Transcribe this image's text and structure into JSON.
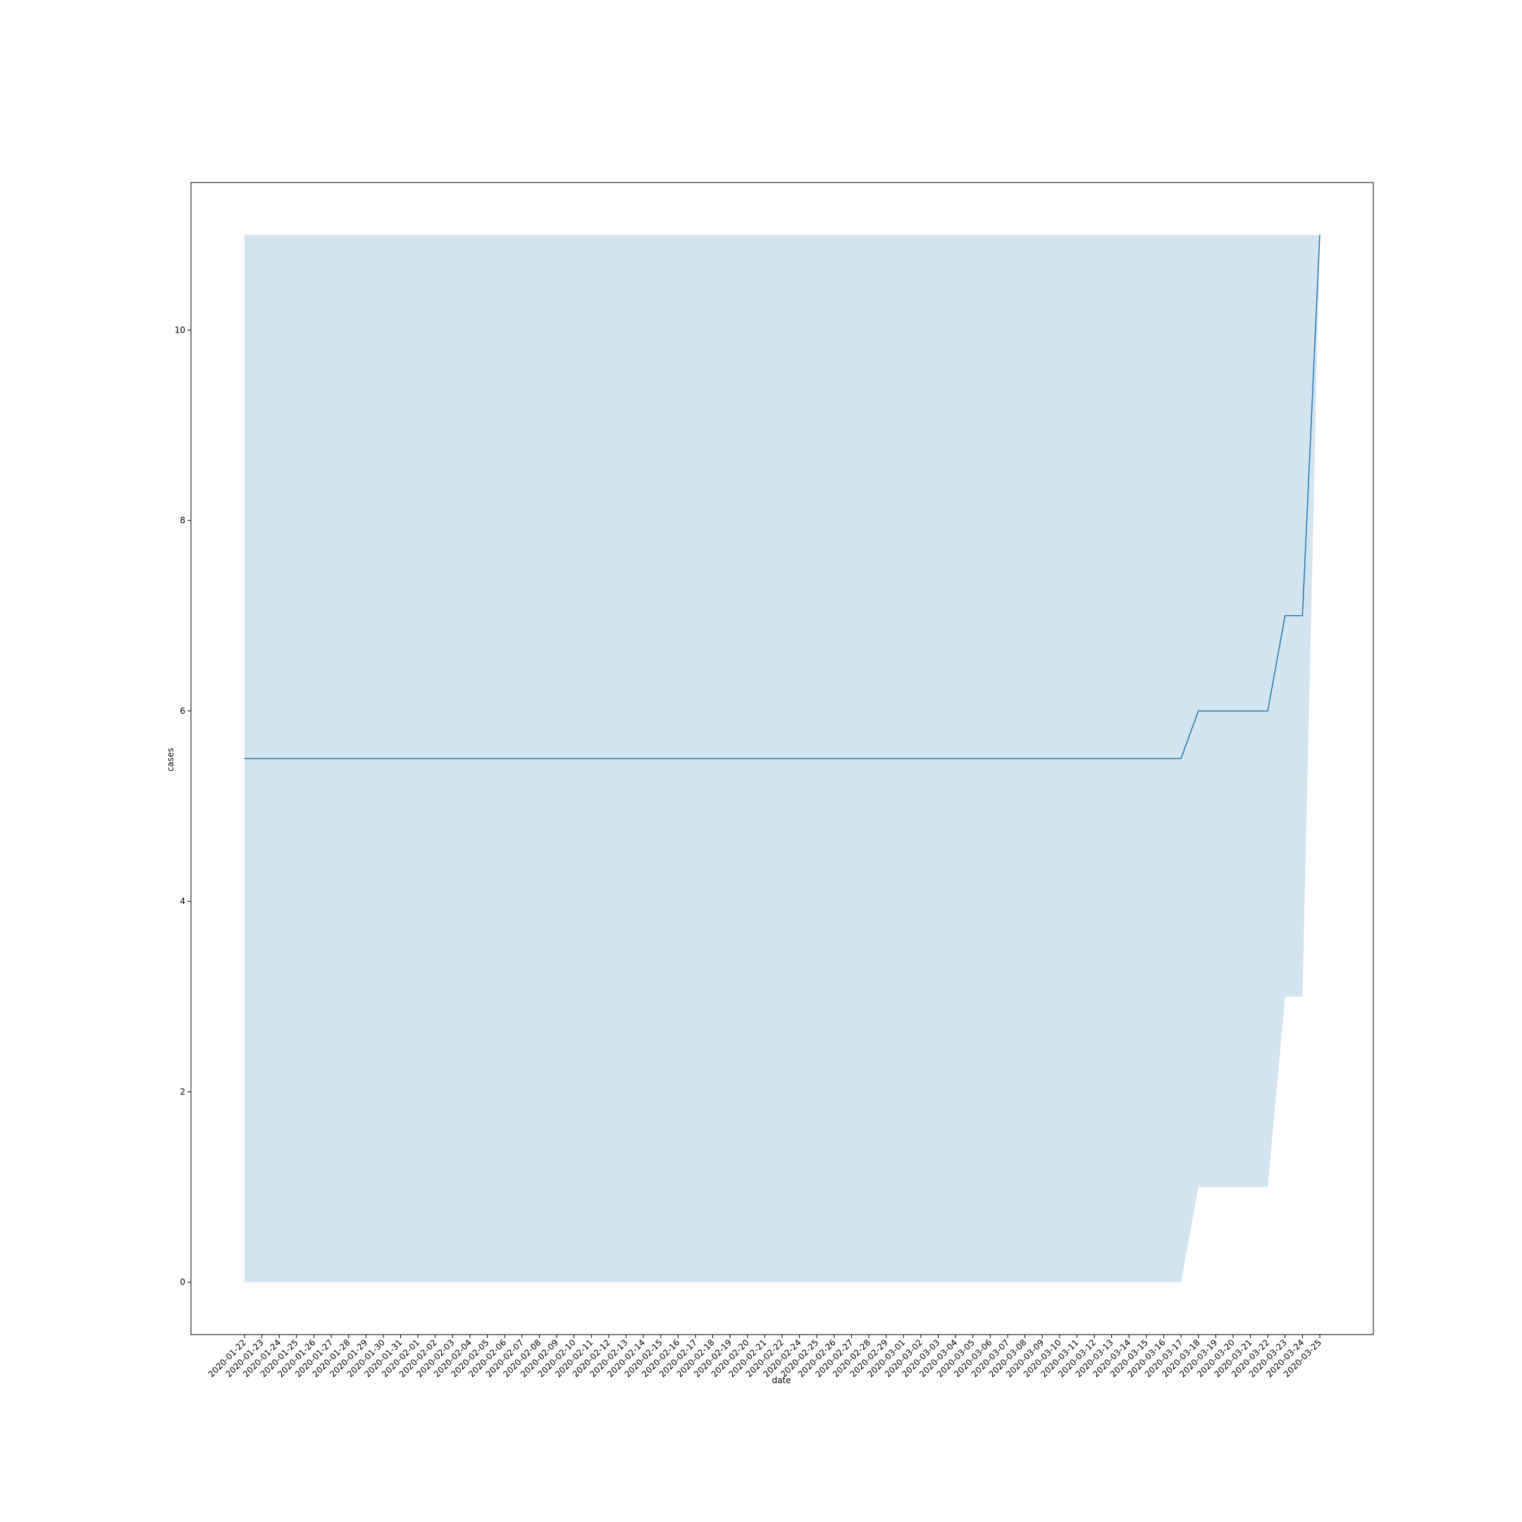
{
  "chart_data": {
    "type": "line",
    "title": "",
    "xlabel": "date",
    "ylabel": "cases",
    "ylim": [
      -0.55,
      11.55
    ],
    "yticks": [
      0,
      2,
      4,
      6,
      8,
      10
    ],
    "grid": false,
    "legend": "none",
    "x": [
      "2020-01-22",
      "2020-01-23",
      "2020-01-24",
      "2020-01-25",
      "2020-01-26",
      "2020-01-27",
      "2020-01-28",
      "2020-01-29",
      "2020-01-30",
      "2020-01-31",
      "2020-02-01",
      "2020-02-02",
      "2020-02-03",
      "2020-02-04",
      "2020-02-05",
      "2020-02-06",
      "2020-02-07",
      "2020-02-08",
      "2020-02-09",
      "2020-02-10",
      "2020-02-11",
      "2020-02-12",
      "2020-02-13",
      "2020-02-14",
      "2020-02-15",
      "2020-02-16",
      "2020-02-17",
      "2020-02-18",
      "2020-02-19",
      "2020-02-20",
      "2020-02-21",
      "2020-02-22",
      "2020-02-24",
      "2020-02-25",
      "2020-02-26",
      "2020-02-27",
      "2020-02-28",
      "2020-02-29",
      "2020-03-01",
      "2020-03-02",
      "2020-03-03",
      "2020-03-04",
      "2020-03-05",
      "2020-03-06",
      "2020-03-07",
      "2020-03-08",
      "2020-03-09",
      "2020-03-10",
      "2020-03-11",
      "2020-03-12",
      "2020-03-13",
      "2020-03-14",
      "2020-03-15",
      "2020-03-16",
      "2020-03-17",
      "2020-03-18",
      "2020-03-19",
      "2020-03-20",
      "2020-03-21",
      "2020-03-22",
      "2020-03-23",
      "2020-03-24",
      "2020-03-25"
    ],
    "series": [
      {
        "values": [
          5.5,
          5.5,
          5.5,
          5.5,
          5.5,
          5.5,
          5.5,
          5.5,
          5.5,
          5.5,
          5.5,
          5.5,
          5.5,
          5.5,
          5.5,
          5.5,
          5.5,
          5.5,
          5.5,
          5.5,
          5.5,
          5.5,
          5.5,
          5.5,
          5.5,
          5.5,
          5.5,
          5.5,
          5.5,
          5.5,
          5.5,
          5.5,
          5.5,
          5.5,
          5.5,
          5.5,
          5.5,
          5.5,
          5.5,
          5.5,
          5.5,
          5.5,
          5.5,
          5.5,
          5.5,
          5.5,
          5.5,
          5.5,
          5.5,
          5.5,
          5.5,
          5.5,
          5.5,
          5.5,
          5.5,
          6,
          6,
          6,
          6,
          6,
          7,
          7,
          11
        ],
        "ci_lower": [
          0,
          0,
          0,
          0,
          0,
          0,
          0,
          0,
          0,
          0,
          0,
          0,
          0,
          0,
          0,
          0,
          0,
          0,
          0,
          0,
          0,
          0,
          0,
          0,
          0,
          0,
          0,
          0,
          0,
          0,
          0,
          0,
          0,
          0,
          0,
          0,
          0,
          0,
          0,
          0,
          0,
          0,
          0,
          0,
          0,
          0,
          0,
          0,
          0,
          0,
          0,
          0,
          0,
          0,
          0,
          1,
          1,
          1,
          1,
          1,
          3,
          3,
          11
        ],
        "ci_upper": [
          11,
          11,
          11,
          11,
          11,
          11,
          11,
          11,
          11,
          11,
          11,
          11,
          11,
          11,
          11,
          11,
          11,
          11,
          11,
          11,
          11,
          11,
          11,
          11,
          11,
          11,
          11,
          11,
          11,
          11,
          11,
          11,
          11,
          11,
          11,
          11,
          11,
          11,
          11,
          11,
          11,
          11,
          11,
          11,
          11,
          11,
          11,
          11,
          11,
          11,
          11,
          11,
          11,
          11,
          11,
          11,
          11,
          11,
          11,
          11,
          11,
          11,
          11
        ]
      }
    ],
    "colors": {
      "line": "#1f77b4",
      "band": "#1f77b4",
      "band_opacity": 0.2,
      "axes": "#000000"
    }
  }
}
